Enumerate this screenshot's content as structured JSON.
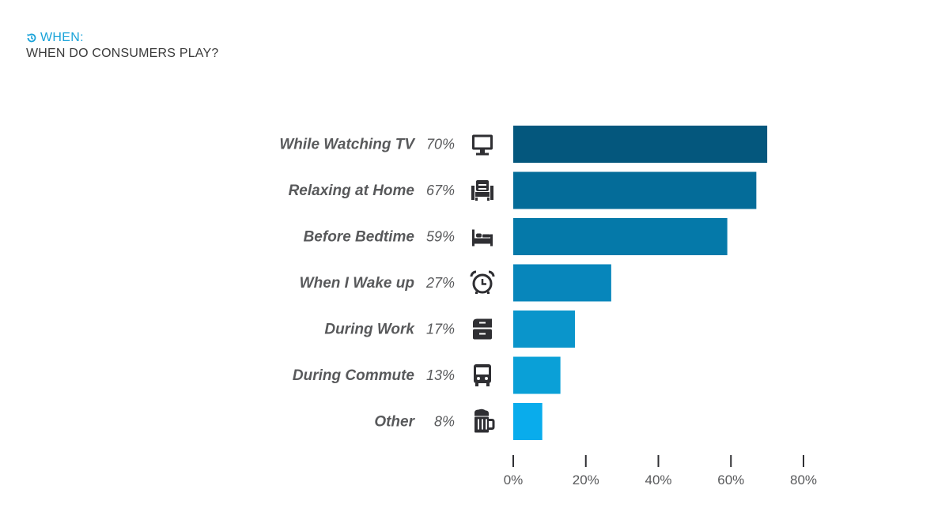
{
  "header": {
    "kicker": "WHEN:",
    "kicker_icon": "clock-rewind-icon",
    "subtitle": "WHEN DO CONSUMERS PLAY?",
    "accent_color": "#1aa3d9"
  },
  "chart_data": {
    "type": "bar",
    "orientation": "horizontal",
    "title": "WHEN DO CONSUMERS PLAY?",
    "categories": [
      "While Watching TV",
      "Relaxing at Home",
      "Before Bedtime",
      "When I Wake up",
      "During Work",
      "During Commute",
      "Other"
    ],
    "values": [
      70,
      67,
      59,
      27,
      17,
      13,
      8
    ],
    "value_labels": [
      "70%",
      "67%",
      "59%",
      "27%",
      "17%",
      "13%",
      "8%"
    ],
    "icons": [
      "monitor-icon",
      "armchair-icon",
      "bed-icon",
      "alarm-clock-icon",
      "filing-cabinet-icon",
      "bus-icon",
      "beer-mug-icon"
    ],
    "bar_colors": [
      "#04577d",
      "#046c99",
      "#0579a9",
      "#0786bb",
      "#0a95cb",
      "#0aa0d7",
      "#09acec"
    ],
    "xlim": [
      0,
      80
    ],
    "x_ticks": [
      0,
      20,
      40,
      60,
      80
    ],
    "x_tick_labels": [
      "0%",
      "20%",
      "40%",
      "60%",
      "80%"
    ],
    "xlabel": "",
    "ylabel": "",
    "grid": false,
    "legend": "none"
  }
}
